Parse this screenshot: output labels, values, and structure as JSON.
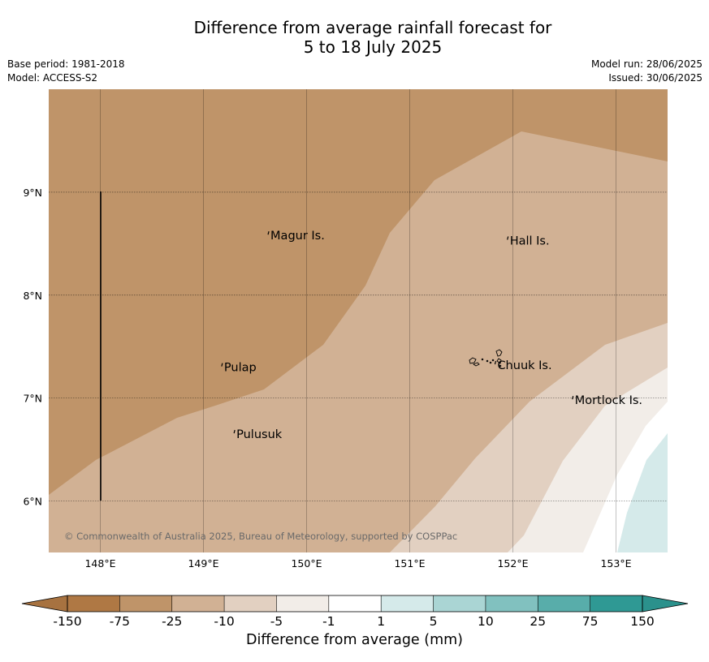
{
  "title": {
    "line1": "Difference from average rainfall forecast for",
    "line2": "5 to 18 July 2025"
  },
  "meta": {
    "base_period": "Base period: 1981-2018",
    "model": "Model: ACCESS-S2",
    "model_run": "Model run: 28/06/2025",
    "issued": "Issued: 30/06/2025"
  },
  "map": {
    "lon_range": [
      147.5,
      153.5
    ],
    "lat_range": [
      5.5,
      10.0
    ],
    "lon_ticks": [
      "148°E",
      "149°E",
      "150°E",
      "151°E",
      "152°E",
      "153°E"
    ],
    "lat_ticks": [
      "9°N",
      "8°N",
      "7°N",
      "6°N"
    ],
    "grid": true,
    "copyright": "© Commonwealth of Australia 2025, Bureau of Meteorology, supported by COSPPac",
    "places": [
      {
        "name": "Magur Is.",
        "lon": 149.65,
        "lat": 8.58
      },
      {
        "name": "Hall Is.",
        "lon": 151.97,
        "lat": 8.53
      },
      {
        "name": "Pulap",
        "lon": 149.2,
        "lat": 7.3
      },
      {
        "name": "Chuuk Is.",
        "lon": 151.85,
        "lat": 7.32
      },
      {
        "name": "Mortlock Is.",
        "lon": 152.6,
        "lat": 6.98
      },
      {
        "name": "Pulusuk",
        "lon": 149.32,
        "lat": 6.65
      }
    ]
  },
  "colorbar": {
    "label": "Difference from average (mm)",
    "ticks": [
      "-150",
      "-75",
      "-25",
      "-10",
      "-5",
      "-1",
      "1",
      "5",
      "10",
      "25",
      "75",
      "150"
    ],
    "colors": {
      "below_min": "#a77240",
      "bins": [
        "#af7844",
        "#bf9469",
        "#d1b194",
        "#e2d0c1",
        "#f2ede8",
        "#ffffff",
        "#d5eaea",
        "#aad5d4",
        "#81c1bf",
        "#58adaa",
        "#2f9994"
      ],
      "above_max": "#2b918c"
    }
  }
}
